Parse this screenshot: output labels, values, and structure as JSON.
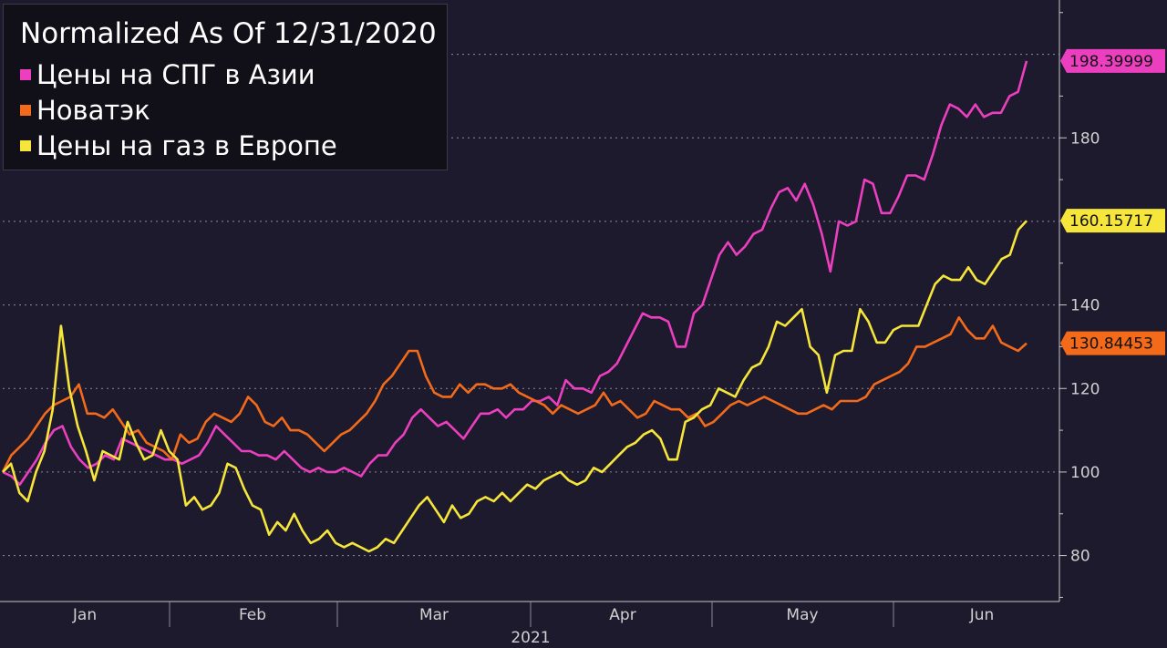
{
  "chart_data": {
    "type": "line",
    "title": "Normalized As Of 12/31/2020",
    "x_axis": {
      "tick_labels": [
        "Jan",
        "Feb",
        "Mar",
        "Apr",
        "May",
        "Jun"
      ],
      "year_label": "2021"
    },
    "y_axis": {
      "position": "right",
      "ticks": [
        80,
        100,
        120,
        140,
        180
      ],
      "range": [
        69,
        213
      ]
    },
    "grid": "horizontal dotted",
    "legend_position": "top-left",
    "series": [
      {
        "name": "Цены на СПГ в Азии",
        "color": "#ec3fc0",
        "last_value_label": "198.39999",
        "values": [
          100,
          99,
          97,
          100,
          103,
          107,
          110,
          111,
          106,
          103,
          101,
          102,
          104,
          103,
          108,
          107,
          106,
          105,
          104,
          103,
          103,
          102,
          103,
          104,
          107,
          111,
          109,
          107,
          105,
          105,
          104,
          104,
          103,
          105,
          103,
          101,
          100,
          101,
          100,
          100,
          101,
          100,
          99,
          102,
          104,
          104,
          107,
          109,
          113,
          115,
          113,
          111,
          112,
          110,
          108,
          111,
          114,
          114,
          115,
          113,
          115,
          115,
          117,
          117,
          118,
          116,
          122,
          120,
          120,
          119,
          123,
          124,
          126,
          130,
          134,
          138,
          137,
          137,
          136,
          130,
          130,
          138,
          140,
          146,
          152,
          155,
          152,
          154,
          157,
          158,
          163,
          167,
          168,
          165,
          169,
          164,
          157,
          148,
          160,
          159,
          160,
          170,
          169,
          162,
          162,
          166,
          171,
          171,
          170,
          176,
          183,
          188,
          187,
          185,
          188,
          185,
          186,
          186,
          190,
          191,
          198.4
        ]
      },
      {
        "name": "Новатэк",
        "color": "#f26a1a",
        "last_value_label": "130.84453",
        "values": [
          100,
          104,
          106,
          108,
          111,
          114,
          116,
          117,
          118,
          121,
          114,
          114,
          113,
          115,
          112,
          109,
          110,
          107,
          106,
          105,
          103,
          109,
          107,
          108,
          112,
          114,
          113,
          112,
          114,
          118,
          116,
          112,
          111,
          113,
          110,
          110,
          109,
          107,
          105,
          107,
          109,
          110,
          112,
          114,
          117,
          121,
          123,
          126,
          129,
          129,
          123,
          119,
          118,
          118,
          121,
          119,
          121,
          121,
          120,
          120,
          121,
          119,
          118,
          117,
          116,
          114,
          116,
          115,
          114,
          115,
          116,
          119,
          116,
          117,
          115,
          113,
          114,
          117,
          116,
          115,
          115,
          113,
          114,
          111,
          112,
          114,
          116,
          117,
          116,
          117,
          118,
          117,
          116,
          115,
          114,
          114,
          115,
          116,
          115,
          117,
          117,
          117,
          118,
          121,
          122,
          123,
          124,
          126,
          130,
          130,
          131,
          132,
          133,
          137,
          134,
          132,
          132,
          135,
          131,
          130,
          129,
          130.84
        ]
      },
      {
        "name": "Цены на газ в Европе",
        "color": "#f6e53a",
        "last_value_label": "160.15717",
        "values": [
          100,
          102,
          95,
          93,
          100,
          105,
          115,
          135,
          120,
          111,
          105,
          98,
          105,
          104,
          103,
          112,
          107,
          103,
          104,
          110,
          105,
          103,
          92,
          94,
          91,
          92,
          95,
          102,
          101,
          96,
          92,
          91,
          85,
          88,
          86,
          90,
          86,
          83,
          84,
          86,
          83,
          82,
          83,
          82,
          81,
          82,
          84,
          83,
          86,
          89,
          92,
          94,
          91,
          88,
          92,
          89,
          90,
          93,
          94,
          93,
          95,
          93,
          95,
          97,
          96,
          98,
          99,
          100,
          98,
          97,
          98,
          101,
          100,
          102,
          104,
          106,
          107,
          109,
          110,
          108,
          103,
          103,
          112,
          113,
          115,
          116,
          120,
          119,
          118,
          122,
          125,
          126,
          130,
          136,
          135,
          137,
          139,
          130,
          128,
          119,
          128,
          129,
          129,
          139,
          136,
          131,
          131,
          134,
          135,
          135,
          135,
          140,
          145,
          147,
          146,
          146,
          149,
          146,
          145,
          148,
          151,
          152,
          158,
          160.16
        ]
      }
    ]
  }
}
